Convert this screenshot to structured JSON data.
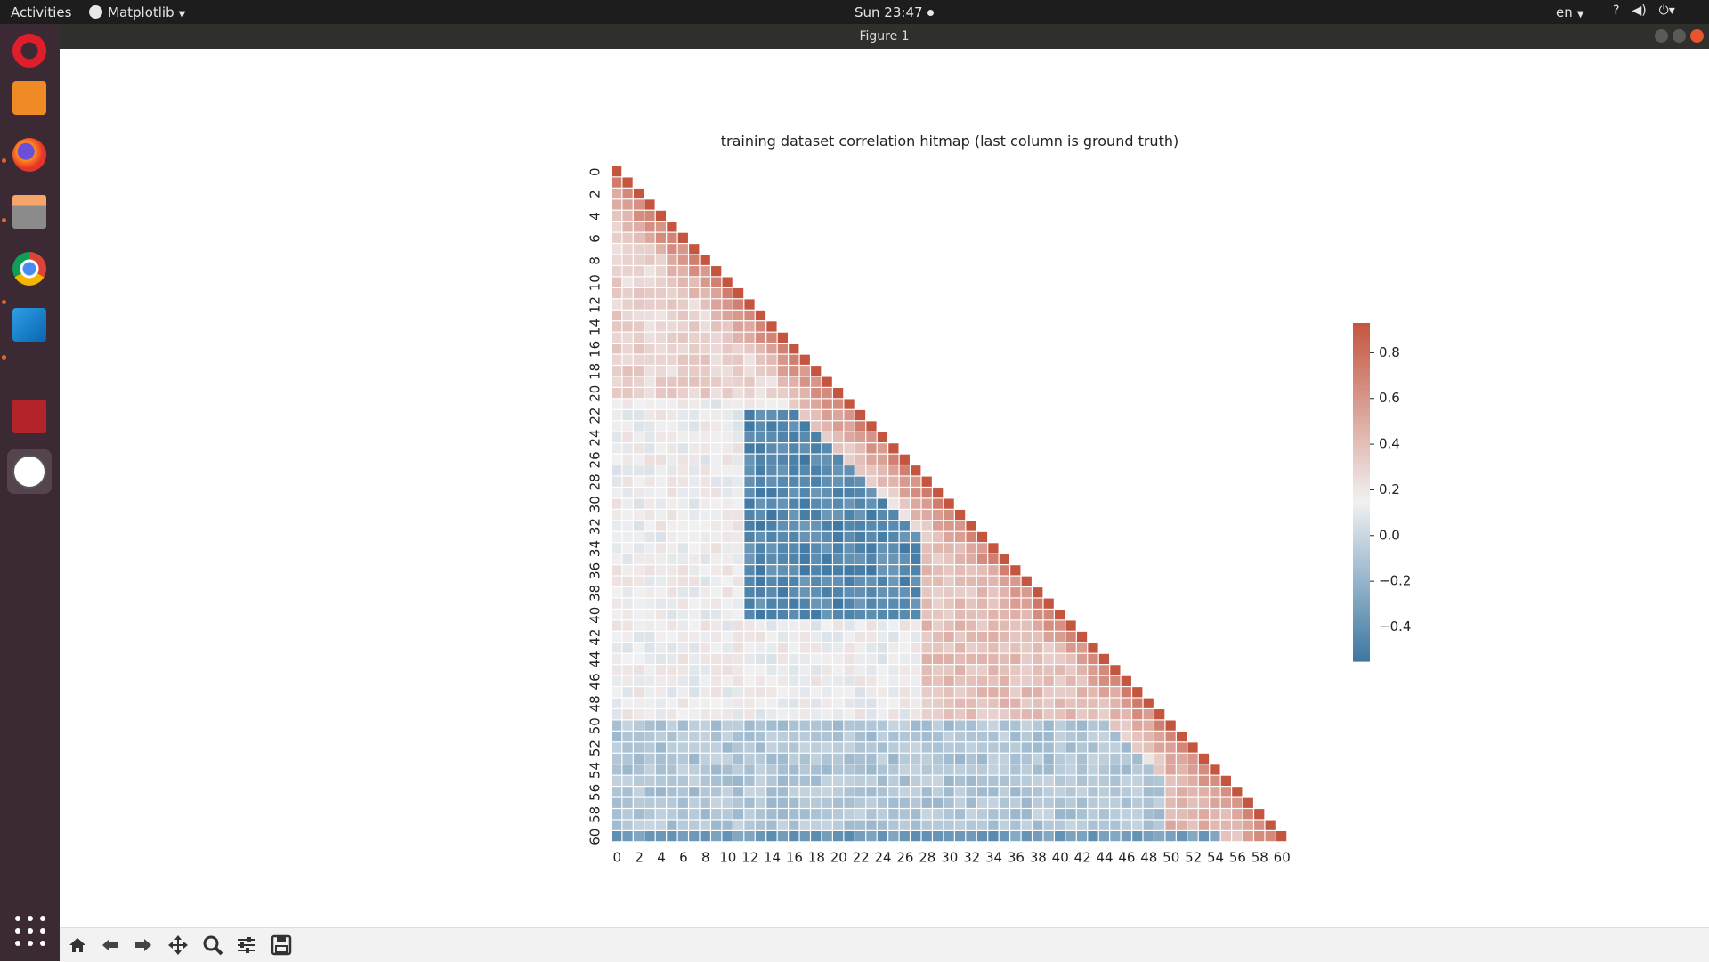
{
  "topbar": {
    "activities": "Activities",
    "app_name": "Matplotlib",
    "clock": "Sun 23:47",
    "lang": "en",
    "tray_icons": [
      "help-network-icon",
      "volume-icon",
      "power-icon"
    ]
  },
  "window": {
    "title": "Figure 1"
  },
  "dock": {
    "items": [
      "opera-icon",
      "pdf-editor-icon",
      "firefox-icon",
      "file-manager-icon",
      "chrome-icon",
      "vscode-icon",
      "terminal-app-icon",
      "matplotlib-icon"
    ]
  },
  "toolbar": {
    "buttons": [
      "home-icon",
      "back-icon",
      "forward-icon",
      "pan-icon",
      "zoom-icon",
      "configure-subplots-icon",
      "save-icon"
    ]
  },
  "chart_data": {
    "type": "heatmap",
    "title": "training dataset correlation hitmap (last column is ground truth)",
    "matrix_size": 61,
    "mask": "upper triangle (lower triangle shown, including diagonal)",
    "x_ticks": [
      "0",
      "2",
      "4",
      "6",
      "8",
      "10",
      "12",
      "14",
      "16",
      "18",
      "20",
      "22",
      "24",
      "26",
      "28",
      "30",
      "32",
      "34",
      "36",
      "38",
      "40",
      "42",
      "44",
      "46",
      "48",
      "50",
      "52",
      "54",
      "56",
      "58",
      "60"
    ],
    "y_ticks": [
      "0",
      "2",
      "4",
      "6",
      "8",
      "10",
      "12",
      "14",
      "16",
      "18",
      "20",
      "22",
      "24",
      "26",
      "28",
      "30",
      "32",
      "34",
      "36",
      "38",
      "40",
      "42",
      "44",
      "46",
      "48",
      "50",
      "52",
      "54",
      "56",
      "58",
      "60"
    ],
    "colorbar": {
      "ticks": [
        "0.8",
        "0.6",
        "0.4",
        "0.2",
        "0.0",
        "−0.2",
        "−0.4"
      ],
      "tick_values": [
        0.8,
        0.6,
        0.4,
        0.2,
        0.0,
        -0.2,
        -0.4
      ],
      "range": [
        -0.55,
        0.93
      ],
      "colors": {
        "low": "#3c77a2",
        "mid": "#f1f1f2",
        "high": "#c4553f"
      }
    },
    "regions": [
      {
        "rows": "0-20",
        "cols": "0-20",
        "approx_value": 0.3
      },
      {
        "rows": "22-40",
        "cols": "12-28",
        "approx_value": -0.45
      },
      {
        "rows": "28-50",
        "cols": "28-50",
        "approx_value": 0.4
      },
      {
        "rows": "50-60",
        "cols": "0-50",
        "approx_value": -0.1
      },
      {
        "rows": "50-59",
        "cols": "50-59",
        "approx_value": 0.45
      },
      {
        "rows": "60",
        "cols": "0-59",
        "approx_value": -0.35
      }
    ],
    "diagonal_value": 0.93
  }
}
